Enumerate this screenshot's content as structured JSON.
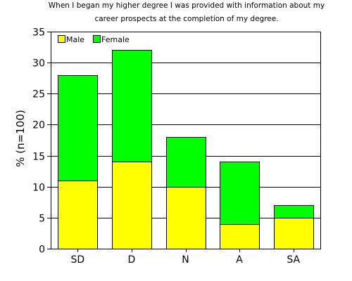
{
  "chart_data": {
    "type": "bar",
    "stacked": true,
    "title_lines": [
      "When I began my higher degree I was provided with information about my",
      "career prospects at the completion of my degree."
    ],
    "xlabel": "",
    "ylabel": "% (n=100)",
    "categories": [
      "SD",
      "D",
      "N",
      "A",
      "SA"
    ],
    "series": [
      {
        "name": "Male",
        "color": "#ffff00",
        "values": [
          11,
          14,
          10,
          4,
          5
        ]
      },
      {
        "name": "Female",
        "color": "#00ff00",
        "values": [
          17,
          18,
          8,
          10,
          2
        ]
      }
    ],
    "ylim": [
      0,
      35
    ],
    "yticks": [
      0,
      5,
      10,
      15,
      20,
      25,
      30,
      35
    ],
    "grid": true,
    "legend_position": "top-left"
  }
}
